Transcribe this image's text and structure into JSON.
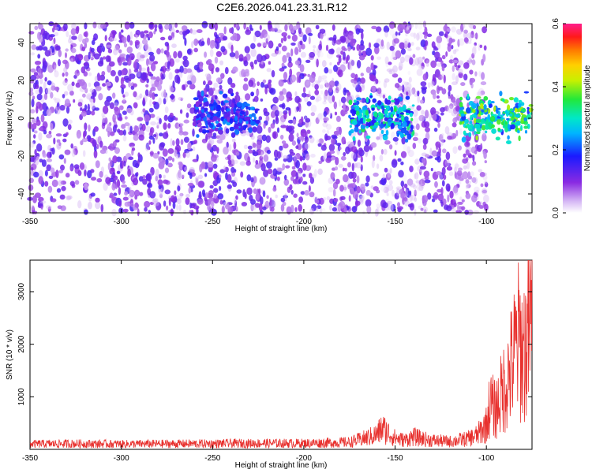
{
  "title": "C2E6.2026.041.23.31.R12",
  "colors": {
    "snr_line": "#e8312e",
    "axis": "#000000",
    "spectrogram_bg": "#ffffff"
  },
  "chart_data": [
    {
      "type": "heatmap",
      "title": "C2E6.2026.041.23.31.R12",
      "xlabel": "Height of straight line (km)",
      "ylabel": "Frequency (Hz)",
      "xlim": [
        -350,
        -75
      ],
      "ylim": [
        -50,
        50
      ],
      "x_ticks": [
        -350,
        -300,
        -250,
        -200,
        -150,
        -100
      ],
      "y_ticks": [
        -40,
        -20,
        0,
        20,
        40
      ],
      "colorbar": {
        "label": "Normalized spectral amplitude",
        "range": [
          0.0,
          0.6
        ],
        "ticks": [
          "0.0",
          "0.2",
          "0.4",
          "0.6"
        ],
        "colormap": "rainbow (white-violet-blue-cyan-green-yellow-orange-red-magenta)"
      },
      "features": [
        {
          "x_range": [
            -350,
            -100
          ],
          "freq_range": [
            -50,
            50
          ],
          "amplitude": 0.1,
          "note": "broadband violet noise"
        },
        {
          "x_range": [
            -260,
            -225
          ],
          "freq_center": 2,
          "amplitude": 0.2
        },
        {
          "x_range": [
            -175,
            -140
          ],
          "freq_center": 1,
          "amplitude": 0.3
        },
        {
          "x_range": [
            -115,
            -75
          ],
          "freq_center": 1,
          "amplitude": 0.35
        }
      ]
    },
    {
      "type": "line",
      "xlabel": "Height of straight line (km)",
      "ylabel": "SNR (10 * v/v)",
      "xlim": [
        -350,
        -75
      ],
      "ylim": [
        0,
        3600
      ],
      "x_ticks": [
        -350,
        -300,
        -250,
        -200,
        -150,
        -100
      ],
      "y_ticks": [
        1000,
        2000,
        3000
      ],
      "series": [
        {
          "x": [
            -350,
            -325,
            -300,
            -275,
            -250,
            -225,
            -200,
            -175,
            -165,
            -160,
            -157,
            -150,
            -145,
            -140,
            -130,
            -120,
            -110,
            -105,
            -100,
            -98,
            -95,
            -90,
            -87,
            -85,
            -82,
            -80,
            -77,
            -75
          ],
          "y": [
            150,
            160,
            150,
            155,
            160,
            170,
            170,
            200,
            330,
            420,
            600,
            320,
            260,
            350,
            250,
            220,
            300,
            400,
            700,
            1300,
            1100,
            1800,
            2200,
            2600,
            3100,
            2700,
            3200,
            3600
          ]
        }
      ]
    }
  ]
}
